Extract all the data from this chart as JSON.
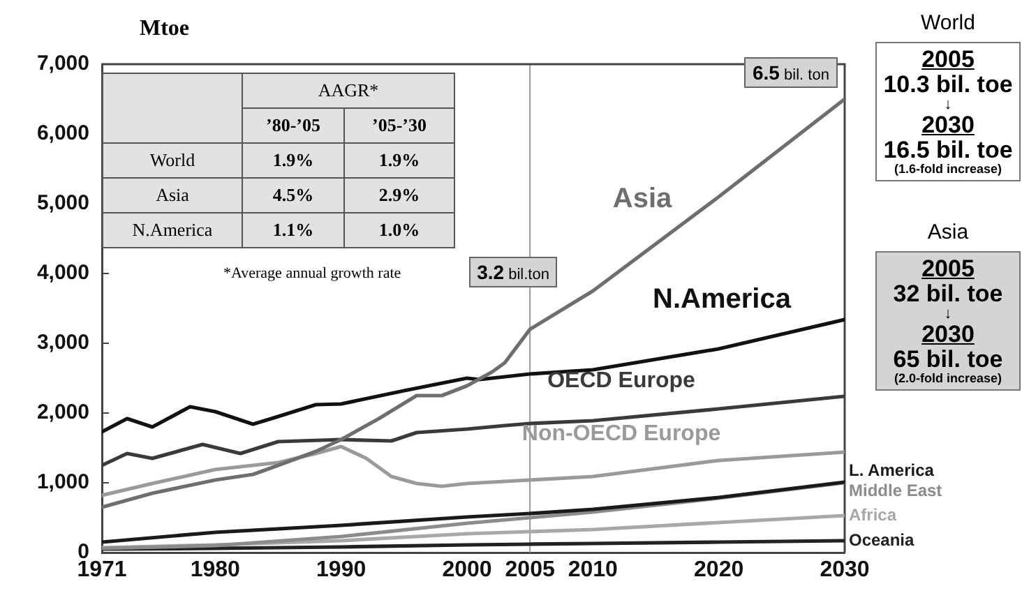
{
  "chart_data": {
    "type": "line",
    "ylabel": "Mtoe",
    "xlim": [
      1971,
      2030
    ],
    "xticks": [
      1971,
      1980,
      1990,
      2000,
      2005,
      2010,
      2020,
      2030
    ],
    "ylim": [
      0,
      7000
    ],
    "yticks": [
      0,
      {
        "value": 1000,
        "label": "1,000"
      },
      {
        "value": 2000,
        "label": "2,000"
      },
      {
        "value": 3000,
        "label": "3,000"
      },
      {
        "value": 4000,
        "label": "4,000"
      },
      {
        "value": 5000,
        "label": "5,000"
      },
      {
        "value": 6000,
        "label": "6,000"
      },
      {
        "value": 7000,
        "label": "7,000"
      }
    ],
    "series": [
      {
        "name": "Asia",
        "color": "#6e6e6e",
        "x": [
          1971,
          1975,
          1980,
          1983,
          1985,
          1988,
          1990,
          1993,
          1996,
          1998,
          2000,
          2002,
          2003,
          2005,
          2010,
          2020,
          2030
        ],
        "values": [
          650,
          850,
          1040,
          1120,
          1250,
          1450,
          1620,
          1920,
          2250,
          2250,
          2390,
          2590,
          2720,
          3200,
          3750,
          5100,
          6500
        ]
      },
      {
        "name": "N.America",
        "color": "#111111",
        "x": [
          1971,
          1973,
          1975,
          1978,
          1980,
          1983,
          1985,
          1988,
          1990,
          1995,
          2000,
          2001,
          2005,
          2010,
          2020,
          2030
        ],
        "values": [
          1730,
          1920,
          1800,
          2090,
          2020,
          1840,
          1950,
          2120,
          2130,
          2320,
          2500,
          2480,
          2560,
          2620,
          2920,
          3340
        ]
      },
      {
        "name": "OECD Europe",
        "color": "#3a3a3a",
        "x": [
          1971,
          1973,
          1975,
          1979,
          1982,
          1985,
          1990,
          1994,
          1996,
          2000,
          2003,
          2005,
          2010,
          2020,
          2030
        ],
        "values": [
          1250,
          1420,
          1350,
          1550,
          1420,
          1590,
          1620,
          1600,
          1720,
          1770,
          1820,
          1850,
          1890,
          2060,
          2240
        ]
      },
      {
        "name": "Non-OECD Europe",
        "color": "#9a9a9a",
        "x": [
          1971,
          1975,
          1980,
          1985,
          1988,
          1990,
          1992,
          1994,
          1996,
          1998,
          2000,
          2002,
          2005,
          2010,
          2020,
          2030
        ],
        "values": [
          820,
          990,
          1190,
          1290,
          1420,
          1520,
          1350,
          1090,
          990,
          950,
          990,
          1010,
          1040,
          1090,
          1320,
          1440
        ]
      },
      {
        "name": "L. America",
        "color": "#1a1a1a",
        "x": [
          1971,
          1980,
          1990,
          2000,
          2005,
          2010,
          2020,
          2030
        ],
        "values": [
          150,
          290,
          390,
          510,
          560,
          620,
          790,
          1010
        ]
      },
      {
        "name": "Middle East",
        "color": "#8c8c8c",
        "x": [
          1971,
          1980,
          1990,
          2000,
          2005,
          2010,
          2020,
          2030
        ],
        "values": [
          60,
          100,
          230,
          420,
          500,
          580,
          780,
          1000
        ]
      },
      {
        "name": "Africa",
        "color": "#a8a8a8",
        "x": [
          1971,
          1980,
          1990,
          2000,
          2005,
          2010,
          2020,
          2030
        ],
        "values": [
          70,
          110,
          170,
          270,
          300,
          330,
          430,
          530
        ]
      },
      {
        "name": "Oceania",
        "color": "#222222",
        "x": [
          1971,
          1980,
          1990,
          2000,
          2005,
          2010,
          2020,
          2030
        ],
        "values": [
          50,
          60,
          80,
          110,
          120,
          130,
          150,
          170
        ]
      }
    ],
    "ref_lines": [
      {
        "axis": "x",
        "value": 2005,
        "color": "#9a9a9a"
      }
    ],
    "annotations": [
      "AAGR*",
      "’80-’05",
      "’05-’30",
      "World",
      "1.9%",
      "1.9%",
      "Asia",
      "4.5%",
      "2.9%",
      "N.America",
      "1.1%",
      "1.0%",
      "*Average annual growth rate",
      {
        "text": "3.2 bil.ton",
        "x": 2005,
        "y": 3200
      },
      {
        "text": "6.5 bil. ton",
        "x": 2030,
        "y": 6500
      },
      "World",
      "2005",
      "10.3 bil. toe",
      "↓",
      "2030",
      "16.5 bil. toe",
      "(1.6-fold increase)",
      "Asia",
      "2005",
      "32 bil. toe",
      "↓",
      "2030",
      "65 bil. toe",
      "(2.0-fold increase)"
    ]
  }
}
